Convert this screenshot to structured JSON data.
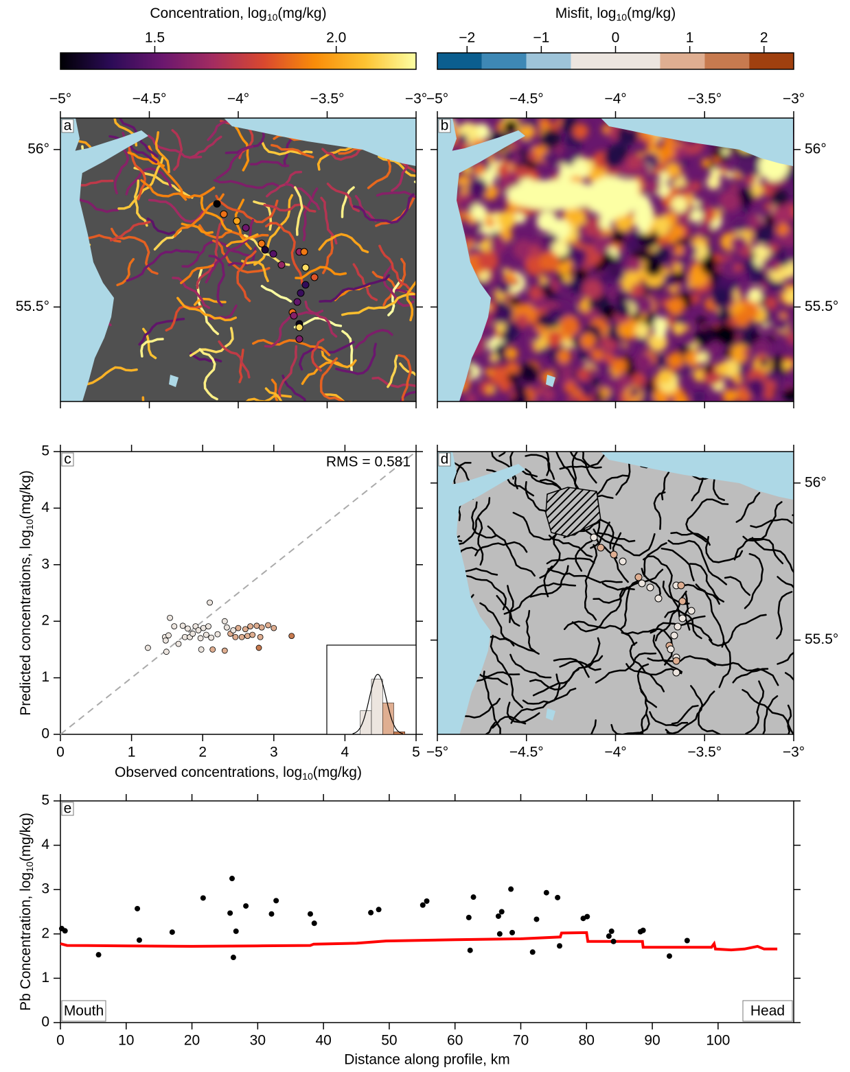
{
  "chart_data": [
    {
      "type": "colorbar",
      "label": {
        "text": "Concentration, log",
        "sub": "10",
        "unit": "(mg/kg)"
      },
      "lim": [
        1.24,
        2.22
      ],
      "ticks": [
        1.5,
        {
          "value": 2,
          "label": "2.0"
        }
      ],
      "colors": [
        "#000004",
        "#2c0b57",
        "#6a176e",
        "#a32c61",
        "#d9482f",
        "#f98c09",
        "#fcc332",
        "#fcffa4"
      ]
    },
    {
      "type": "colorbar",
      "label": {
        "text": "Misfit, log",
        "sub": "10",
        "unit": "(mg/kg)"
      },
      "lim": [
        -2.4,
        2.4
      ],
      "ticks": [
        {
          "value": -2,
          "label": "−2"
        },
        {
          "value": -1,
          "label": "−1"
        },
        0,
        1,
        2
      ],
      "boundaries": [
        -2.4,
        -1.8,
        -1.2,
        -0.6,
        0.6,
        1.2,
        1.8,
        2.4
      ],
      "colors": [
        "#0b5e8f",
        "#3e88b5",
        "#9ec4d9",
        "#ece5df",
        "#dfae91",
        "#c77a4f",
        "#a0400f"
      ]
    },
    {
      "type": "map",
      "panel_label": "a",
      "xlim": [
        -5,
        -3
      ],
      "xticks": [
        {
          "value": -5,
          "label": "−5°"
        },
        {
          "value": -4.5,
          "label": "−4.5°"
        },
        {
          "value": -4,
          "label": "−4°"
        },
        {
          "value": -3.5,
          "label": "−3.5°"
        },
        {
          "value": -3,
          "label": "−3°"
        }
      ],
      "ylim": [
        55.2,
        56.1
      ],
      "yticks": [
        {
          "value": 56,
          "label": "56°"
        },
        {
          "value": 55.5,
          "label": "55.5°"
        }
      ],
      "x_tick_labels": "top",
      "y_tick_labels": "left",
      "land_color": "#505050",
      "sea_color": "#add8e6",
      "rivers": "concentration",
      "profile": true
    },
    {
      "type": "map",
      "panel_label": "b",
      "xlim": [
        -5,
        -3
      ],
      "xticks": [
        {
          "value": -5,
          "label": "−5°"
        },
        {
          "value": -4.5,
          "label": "−4.5°"
        },
        {
          "value": -4,
          "label": "−4°"
        },
        {
          "value": -3.5,
          "label": "−3.5°"
        },
        {
          "value": -3,
          "label": "−3°"
        }
      ],
      "ylim": [
        55.2,
        56.1
      ],
      "yticks": [
        {
          "value": 56,
          "label": "56°"
        },
        {
          "value": 55.5,
          "label": "55.5°"
        }
      ],
      "x_tick_labels": "top",
      "y_tick_labels": "right",
      "sea_color": "#add8e6",
      "surface": true
    },
    {
      "type": "scatter",
      "panel_label": "c",
      "annotation": "RMS = 0.581",
      "xlabel": {
        "text": "Observed concentrations, log",
        "sub": "10",
        "unit": "(mg/kg)"
      },
      "ylabel": {
        "text": "Predicted concentrations, log",
        "sub": "10",
        "unit": "(mg/kg)"
      },
      "xlim": [
        0,
        5
      ],
      "ylim": [
        0,
        5
      ],
      "xticks": [
        0,
        1,
        2,
        3,
        4,
        5
      ],
      "yticks": [
        0,
        1,
        2,
        3,
        4,
        5
      ],
      "x": [
        1.23,
        1.47,
        1.48,
        1.49,
        1.52,
        1.54,
        1.6,
        1.66,
        1.72,
        1.75,
        1.79,
        1.82,
        1.86,
        1.9,
        1.94,
        1.97,
        2.01,
        1.98,
        2.05,
        2.08,
        2.1,
        2.12,
        2.14,
        2.21,
        2.31,
        2.34,
        2.31,
        2.39,
        2.43,
        2.46,
        2.5,
        2.55,
        2.6,
        2.63,
        2.67,
        2.7,
        2.76,
        2.79,
        2.81,
        2.83,
        2.92,
        3.0,
        3.25
      ],
      "y": [
        1.53,
        1.72,
        1.66,
        1.46,
        1.75,
        2.06,
        1.91,
        1.6,
        1.92,
        1.72,
        1.87,
        1.72,
        1.78,
        1.91,
        1.84,
        1.7,
        1.88,
        1.5,
        1.76,
        1.91,
        2.33,
        1.71,
        1.5,
        1.77,
        2.0,
        1.89,
        1.48,
        1.78,
        1.84,
        1.72,
        1.88,
        1.72,
        1.86,
        1.74,
        1.91,
        1.76,
        1.92,
        1.53,
        1.72,
        1.89,
        1.93,
        1.88,
        1.74
      ],
      "inset": {
        "type": "histogram",
        "bins": [
          -0.6,
          0,
          0.6,
          1.2,
          1.8
        ],
        "counts": [
          9,
          21,
          12,
          1
        ],
        "xlim": [
          -2.4,
          2.4
        ],
        "ylim": [
          0,
          34
        ],
        "curve_mean": 0.34,
        "curve_sd": 0.45
      }
    },
    {
      "type": "map",
      "panel_label": "d",
      "xlim": [
        -5,
        -3
      ],
      "xticks": [
        {
          "value": -5,
          "label": "−5°"
        },
        {
          "value": -4.5,
          "label": "−4.5°"
        },
        {
          "value": -4,
          "label": "−4°"
        },
        {
          "value": -3.5,
          "label": "−3.5°"
        },
        {
          "value": -3,
          "label": "−3°"
        }
      ],
      "ylim": [
        55.2,
        56.1
      ],
      "yticks": [
        {
          "value": 56,
          "label": "56°"
        },
        {
          "value": 55.5,
          "label": "55.5°"
        }
      ],
      "x_tick_labels": "bottom",
      "y_tick_labels": "right",
      "land_color": "#bdbdbd",
      "sea_color": "#add8e6",
      "rivers": "single",
      "river_color": "#000000",
      "hatch": true,
      "profile": true
    },
    {
      "type": "line",
      "panel_label": "e",
      "xlabel": "Distance along profile, km",
      "ylabel": {
        "text": "Pb Concentration, log",
        "sub": "10",
        "unit": "(mg/kg)"
      },
      "annotations": [
        "Mouth",
        "Head"
      ],
      "xlim": [
        0,
        111.5
      ],
      "xticks": [
        0,
        10,
        20,
        30,
        40,
        50,
        60,
        70,
        80,
        90,
        100
      ],
      "ylim": [
        0,
        5
      ],
      "yticks": [
        0,
        1,
        2,
        3,
        4,
        5
      ],
      "observed": {
        "color": "#000000",
        "x": [
          0.2,
          0.7,
          5.8,
          11.7,
          12.0,
          17.0,
          21.7,
          25.8,
          26.1,
          26.3,
          26.7,
          28.2,
          32.1,
          32.8,
          38.0,
          38.6,
          47.2,
          48.4,
          55.1,
          55.7,
          62.1,
          62.3,
          62.8,
          66.6,
          66.8,
          67.1,
          68.5,
          68.7,
          71.8,
          72.4,
          73.9,
          75.6,
          75.9,
          79.5,
          80.1,
          83.4,
          83.8,
          84.1,
          88.2,
          88.6,
          92.6,
          95.3
        ],
        "y": [
          2.12,
          2.07,
          1.53,
          2.57,
          1.86,
          2.04,
          2.81,
          2.47,
          3.25,
          1.47,
          2.06,
          2.63,
          2.45,
          2.75,
          2.45,
          2.24,
          2.48,
          2.55,
          2.65,
          2.74,
          2.37,
          1.63,
          2.83,
          2.4,
          2.0,
          2.5,
          3.01,
          2.03,
          1.59,
          2.33,
          2.93,
          2.82,
          1.73,
          2.35,
          2.39,
          1.95,
          2.06,
          1.83,
          2.05,
          2.08,
          1.5,
          1.85
        ]
      },
      "predicted": {
        "color": "#ff0000",
        "x": [
          0,
          1,
          10,
          20,
          30,
          38,
          38.5,
          45,
          49.5,
          60,
          70,
          76,
          76.2,
          80,
          80.2,
          88.5,
          88.6,
          99,
          99.4,
          99.6,
          102,
          104,
          106,
          107,
          109
        ],
        "y": [
          1.78,
          1.74,
          1.73,
          1.72,
          1.73,
          1.74,
          1.77,
          1.79,
          1.84,
          1.87,
          1.89,
          1.93,
          2.02,
          2.03,
          1.83,
          1.83,
          1.7,
          1.7,
          1.78,
          1.66,
          1.64,
          1.66,
          1.72,
          1.66,
          1.66
        ]
      }
    }
  ]
}
